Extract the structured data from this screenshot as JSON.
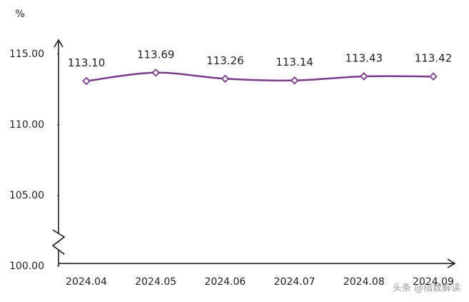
{
  "chart_data": {
    "type": "line",
    "y_label": "%",
    "categories": [
      "2024.04",
      "2024.05",
      "2024.06",
      "2024.07",
      "2024.08",
      "2024.09"
    ],
    "series": [
      {
        "color": "#7b3a8b",
        "values": [
          113.1,
          113.69,
          113.26,
          113.14,
          113.43,
          113.42
        ],
        "value_labels": [
          "113.10",
          "113.69",
          "113.26",
          "113.14",
          "113.43",
          "113.42"
        ]
      }
    ],
    "ylim": [
      100,
      115.9
    ],
    "yticks": [
      {
        "value": 100,
        "label": "100.00"
      },
      {
        "value": 105,
        "label": "105.00"
      },
      {
        "value": 110,
        "label": "110.00"
      },
      {
        "value": 115,
        "label": "115.00"
      }
    ],
    "grid": false,
    "watermark": "头条 @指数解读"
  }
}
